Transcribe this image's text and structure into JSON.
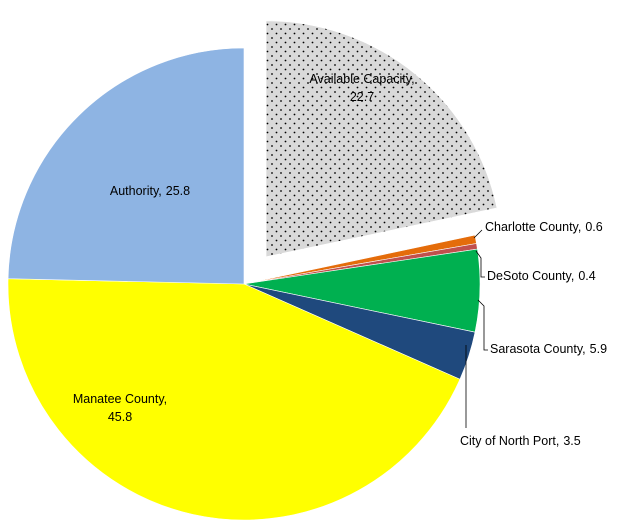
{
  "chart_data": {
    "type": "pie",
    "categories": [
      "Available Capacity",
      "Charlotte County",
      "DeSoto County",
      "Sarasota County",
      "City of North Port",
      "Manatee County",
      "Authority"
    ],
    "values": [
      22.7,
      0.6,
      0.4,
      5.9,
      3.5,
      45.8,
      25.8
    ],
    "colors": [
      "#d9d9d9",
      "#e46c0a",
      "#c0504d",
      "#00b050",
      "#1f497d",
      "#ffff00",
      "#8eb4e3"
    ],
    "exploded": [
      "Available Capacity"
    ],
    "patterned": [
      "Available Capacity"
    ]
  }
}
